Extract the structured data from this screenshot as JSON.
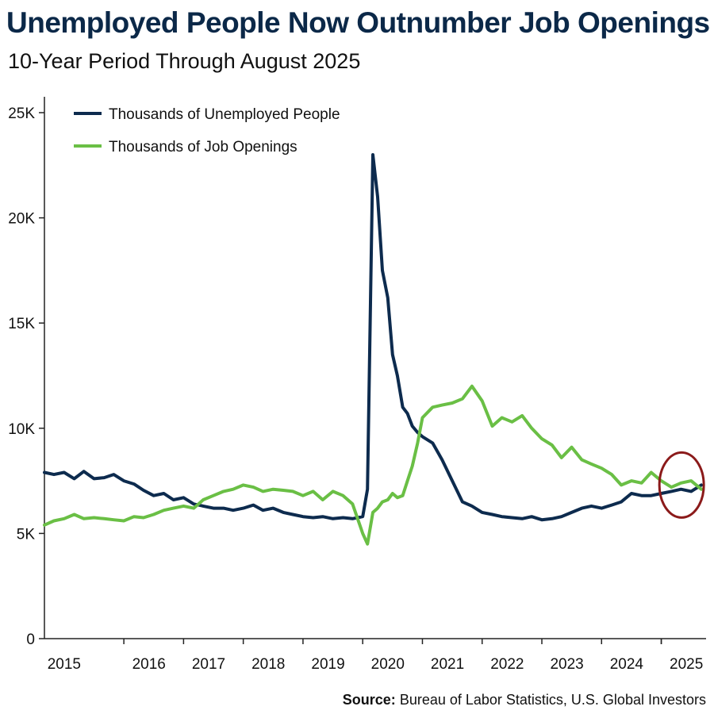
{
  "header": {
    "title": "Unemployed People Now Outnumber Job Openings",
    "subtitle": "10-Year Period Through August 2025"
  },
  "source": {
    "label": "Source:",
    "text": "Bureau of Labor Statistics, U.S. Global Investors"
  },
  "colors": {
    "unemployed": "#0d2b4e",
    "openings": "#6abf45",
    "highlight_circle": "#8b1a1a",
    "axis": "#222222"
  },
  "chart_data": {
    "type": "line",
    "title": "Unemployed People Now Outnumber Job Openings",
    "subtitle": "10-Year Period Through August 2025",
    "ylabel": "",
    "xlabel": "",
    "ylim": [
      0,
      25000
    ],
    "xlim": [
      2014.67,
      2025.75
    ],
    "y_ticks": [
      0,
      5000,
      10000,
      15000,
      20000,
      25000
    ],
    "y_tick_labels": [
      "0",
      "5K",
      "10K",
      "15K",
      "20K",
      "25K"
    ],
    "x_ticks": [
      2015,
      2016,
      2017,
      2018,
      2019,
      2020,
      2021,
      2022,
      2023,
      2024,
      2025
    ],
    "x_tick_labels": [
      "2015",
      "2016",
      "2017",
      "2018",
      "2019",
      "2020",
      "2021",
      "2022",
      "2023",
      "2024",
      "2025"
    ],
    "legend_position": "top-left",
    "annotation": "circle around latest values (mid-2025)",
    "series": [
      {
        "name": "Thousands of Unemployed People",
        "x": [
          2014.67,
          2014.83,
          2015.0,
          2015.17,
          2015.33,
          2015.5,
          2015.67,
          2015.83,
          2016.0,
          2016.17,
          2016.33,
          2016.5,
          2016.67,
          2016.83,
          2017.0,
          2017.17,
          2017.33,
          2017.5,
          2017.67,
          2017.83,
          2018.0,
          2018.17,
          2018.33,
          2018.5,
          2018.67,
          2018.83,
          2019.0,
          2019.17,
          2019.33,
          2019.5,
          2019.67,
          2019.83,
          2020.0,
          2020.08,
          2020.17,
          2020.25,
          2020.33,
          2020.42,
          2020.5,
          2020.58,
          2020.67,
          2020.75,
          2020.83,
          2020.92,
          2021.0,
          2021.17,
          2021.33,
          2021.5,
          2021.67,
          2021.83,
          2022.0,
          2022.17,
          2022.33,
          2022.5,
          2022.67,
          2022.83,
          2023.0,
          2023.17,
          2023.33,
          2023.5,
          2023.67,
          2023.83,
          2024.0,
          2024.17,
          2024.33,
          2024.5,
          2024.67,
          2024.83,
          2025.0,
          2025.17,
          2025.33,
          2025.5,
          2025.67
        ],
        "values": [
          7900,
          7800,
          7900,
          7600,
          7950,
          7600,
          7650,
          7800,
          7500,
          7350,
          7050,
          6800,
          6900,
          6600,
          6700,
          6400,
          6300,
          6200,
          6200,
          6100,
          6200,
          6350,
          6100,
          6200,
          6000,
          5900,
          5800,
          5750,
          5800,
          5700,
          5750,
          5700,
          5800,
          7100,
          23000,
          21000,
          17500,
          16200,
          13500,
          12500,
          11000,
          10700,
          10100,
          9800,
          9600,
          9300,
          8500,
          7500,
          6500,
          6300,
          6000,
          5900,
          5800,
          5750,
          5700,
          5800,
          5650,
          5700,
          5800,
          6000,
          6200,
          6300,
          6200,
          6350,
          6500,
          6900,
          6800,
          6800,
          6900,
          7000,
          7100,
          7000,
          7300
        ]
      },
      {
        "name": "Thousands of Job Openings",
        "x": [
          2014.67,
          2014.83,
          2015.0,
          2015.17,
          2015.33,
          2015.5,
          2015.67,
          2015.83,
          2016.0,
          2016.17,
          2016.33,
          2016.5,
          2016.67,
          2016.83,
          2017.0,
          2017.17,
          2017.33,
          2017.5,
          2017.67,
          2017.83,
          2018.0,
          2018.17,
          2018.33,
          2018.5,
          2018.67,
          2018.83,
          2019.0,
          2019.17,
          2019.33,
          2019.5,
          2019.67,
          2019.83,
          2020.0,
          2020.08,
          2020.17,
          2020.25,
          2020.33,
          2020.42,
          2020.5,
          2020.58,
          2020.67,
          2020.75,
          2020.83,
          2020.92,
          2021.0,
          2021.17,
          2021.33,
          2021.5,
          2021.67,
          2021.83,
          2022.0,
          2022.17,
          2022.33,
          2022.5,
          2022.67,
          2022.83,
          2023.0,
          2023.17,
          2023.33,
          2023.5,
          2023.67,
          2023.83,
          2024.0,
          2024.17,
          2024.33,
          2024.5,
          2024.67,
          2024.83,
          2025.0,
          2025.17,
          2025.33,
          2025.5,
          2025.67
        ],
        "values": [
          5400,
          5600,
          5700,
          5900,
          5700,
          5750,
          5700,
          5650,
          5600,
          5800,
          5750,
          5900,
          6100,
          6200,
          6300,
          6200,
          6600,
          6800,
          7000,
          7100,
          7300,
          7200,
          7000,
          7100,
          7050,
          7000,
          6800,
          7000,
          6600,
          7000,
          6800,
          6400,
          5000,
          4500,
          6000,
          6200,
          6500,
          6600,
          6900,
          6700,
          6800,
          7500,
          8200,
          9300,
          10500,
          11000,
          11100,
          11200,
          11400,
          12000,
          11300,
          10100,
          10500,
          10300,
          10600,
          10000,
          9500,
          9200,
          8600,
          9100,
          8500,
          8300,
          8100,
          7800,
          7300,
          7500,
          7400,
          7900,
          7500,
          7200,
          7400,
          7500,
          7100
        ]
      }
    ]
  }
}
